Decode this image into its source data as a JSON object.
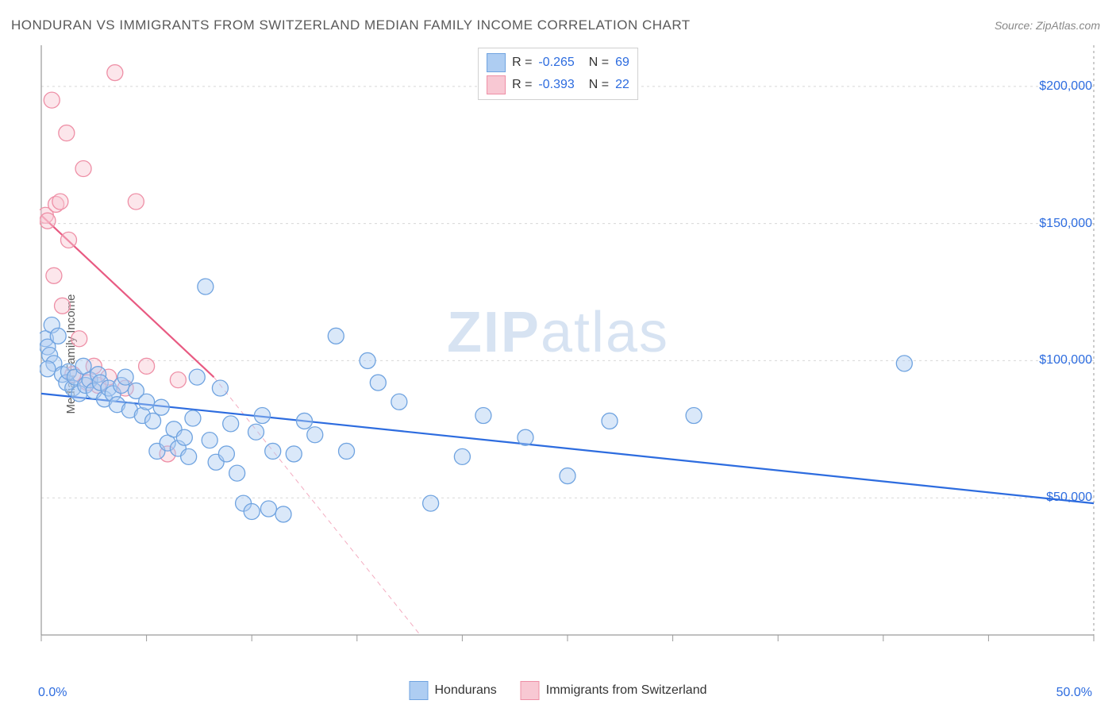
{
  "title": "HONDURAN VS IMMIGRANTS FROM SWITZERLAND MEDIAN FAMILY INCOME CORRELATION CHART",
  "source": "Source: ZipAtlas.com",
  "ylabel": "Median Family Income",
  "watermark_a": "ZIP",
  "watermark_b": "atlas",
  "chart": {
    "type": "scatter",
    "background_color": "#ffffff",
    "grid_color": "#d7d7d7",
    "grid_dash": "3,4",
    "axis_color": "#9a9a9a",
    "xlim": [
      0,
      50
    ],
    "ylim": [
      0,
      215000
    ],
    "x_ticks_minor": [
      0,
      5,
      10,
      15,
      20,
      25,
      30,
      35,
      40,
      45,
      50
    ],
    "x_tick_labels": {
      "0": "0.0%",
      "50": "50.0%"
    },
    "y_gridlines": [
      50000,
      100000,
      150000,
      200000
    ],
    "y_tick_labels": {
      "50000": "$50,000",
      "100000": "$100,000",
      "150000": "$150,000",
      "200000": "$200,000"
    },
    "label_color": "#2d6cdf",
    "label_fontsize": 16,
    "title_fontsize": 17,
    "title_color": "#5a5a5a",
    "marker_radius": 10,
    "marker_opacity": 0.45,
    "line_width": 2.2
  },
  "series": [
    {
      "name": "Hondurans",
      "fill": "#aecdf2",
      "stroke": "#6fa3e0",
      "line_color": "#2d6cdf",
      "R": "-0.265",
      "N": "69",
      "trend": {
        "x1": 0,
        "y1": 88000,
        "x2": 50,
        "y2": 48000,
        "dash": "none"
      },
      "points": [
        [
          0.2,
          108000
        ],
        [
          0.3,
          105000
        ],
        [
          0.4,
          102000
        ],
        [
          0.5,
          113000
        ],
        [
          0.6,
          99000
        ],
        [
          0.8,
          109000
        ],
        [
          1.0,
          95000
        ],
        [
          1.2,
          92000
        ],
        [
          1.3,
          96000
        ],
        [
          1.5,
          90000
        ],
        [
          1.6,
          94000
        ],
        [
          1.8,
          88000
        ],
        [
          2.0,
          98000
        ],
        [
          2.1,
          91000
        ],
        [
          2.3,
          93000
        ],
        [
          2.5,
          89000
        ],
        [
          2.7,
          95000
        ],
        [
          2.8,
          92000
        ],
        [
          3.0,
          86000
        ],
        [
          3.2,
          90000
        ],
        [
          3.4,
          88000
        ],
        [
          3.6,
          84000
        ],
        [
          3.8,
          91000
        ],
        [
          4.0,
          94000
        ],
        [
          4.2,
          82000
        ],
        [
          4.5,
          89000
        ],
        [
          4.8,
          80000
        ],
        [
          5.0,
          85000
        ],
        [
          5.3,
          78000
        ],
        [
          5.5,
          67000
        ],
        [
          5.7,
          83000
        ],
        [
          6.0,
          70000
        ],
        [
          6.3,
          75000
        ],
        [
          6.5,
          68000
        ],
        [
          6.8,
          72000
        ],
        [
          7.0,
          65000
        ],
        [
          7.2,
          79000
        ],
        [
          7.4,
          94000
        ],
        [
          7.8,
          127000
        ],
        [
          8.0,
          71000
        ],
        [
          8.3,
          63000
        ],
        [
          8.5,
          90000
        ],
        [
          8.8,
          66000
        ],
        [
          9.0,
          77000
        ],
        [
          9.3,
          59000
        ],
        [
          9.6,
          48000
        ],
        [
          10.0,
          45000
        ],
        [
          10.2,
          74000
        ],
        [
          10.5,
          80000
        ],
        [
          10.8,
          46000
        ],
        [
          11.0,
          67000
        ],
        [
          11.5,
          44000
        ],
        [
          12.0,
          66000
        ],
        [
          12.5,
          78000
        ],
        [
          13.0,
          73000
        ],
        [
          14.0,
          109000
        ],
        [
          14.5,
          67000
        ],
        [
          15.5,
          100000
        ],
        [
          16.0,
          92000
        ],
        [
          17.0,
          85000
        ],
        [
          18.5,
          48000
        ],
        [
          20.0,
          65000
        ],
        [
          21.0,
          80000
        ],
        [
          23.0,
          72000
        ],
        [
          25.0,
          58000
        ],
        [
          27.0,
          78000
        ],
        [
          31.0,
          80000
        ],
        [
          41.0,
          99000
        ],
        [
          0.3,
          97000
        ]
      ]
    },
    {
      "name": "Immigrants from Switzerland",
      "fill": "#f8c8d3",
      "stroke": "#ee8fa6",
      "line_color": "#e85a82",
      "R": "-0.393",
      "N": "22",
      "trend": {
        "x1": 0,
        "y1": 153000,
        "x2": 8.2,
        "y2": 94000,
        "dash": "none"
      },
      "trend_ext": {
        "x1": 8.2,
        "y1": 94000,
        "x2": 18,
        "y2": 0,
        "dash": "6,5"
      },
      "points": [
        [
          0.2,
          153000
        ],
        [
          0.3,
          151000
        ],
        [
          0.5,
          195000
        ],
        [
          0.6,
          131000
        ],
        [
          0.7,
          157000
        ],
        [
          0.9,
          158000
        ],
        [
          1.0,
          120000
        ],
        [
          1.2,
          183000
        ],
        [
          1.3,
          144000
        ],
        [
          1.5,
          95000
        ],
        [
          1.8,
          108000
        ],
        [
          2.0,
          170000
        ],
        [
          2.2,
          92000
        ],
        [
          2.5,
          98000
        ],
        [
          2.7,
          91000
        ],
        [
          3.2,
          94000
        ],
        [
          3.5,
          205000
        ],
        [
          4.0,
          90000
        ],
        [
          4.5,
          158000
        ],
        [
          5.0,
          98000
        ],
        [
          6.0,
          66000
        ],
        [
          6.5,
          93000
        ]
      ]
    }
  ],
  "legend_bottom": [
    {
      "label": "Hondurans",
      "fill": "#aecdf2",
      "stroke": "#6fa3e0"
    },
    {
      "label": "Immigrants from Switzerland",
      "fill": "#f8c8d3",
      "stroke": "#ee8fa6"
    }
  ]
}
